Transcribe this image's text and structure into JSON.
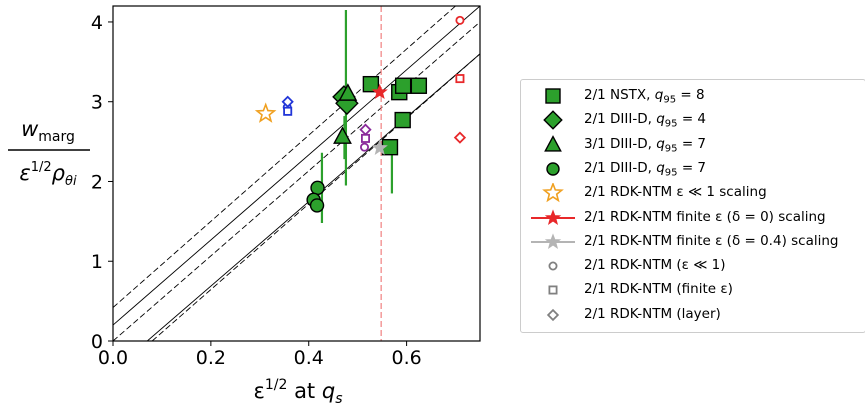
{
  "chart_data": {
    "type": "scatter",
    "title": "",
    "xlabel": "ε^{1/2} at q_s",
    "xlabel_parts": {
      "sym": "ε",
      "sup": "1/2",
      "mid": " at ",
      "q": "q",
      "sub": "s"
    },
    "ylabel_parts": {
      "num": "w",
      "num_sub": "marg",
      "den_eps": "ε",
      "den_sup": "1/2",
      "den_rho": "ρ",
      "den_sub": "θi"
    },
    "xlim": [
      0.0,
      0.75
    ],
    "ylim": [
      0.0,
      4.2
    ],
    "xticks": [
      "0.0",
      "0.2",
      "0.4",
      "0.6"
    ],
    "xtick_values": [
      0.0,
      0.2,
      0.4,
      0.6
    ],
    "yticks": [
      "0",
      "1",
      "2",
      "3",
      "4"
    ],
    "ytick_values": [
      0,
      1,
      2,
      3,
      4
    ],
    "grid": false,
    "legend_placement": "outside right",
    "colors": {
      "green": "#2ca02c",
      "red": "#e8282a",
      "blue": "#2236d8",
      "purple": "#8a2a9a",
      "orange": "#f0a020",
      "grey": "#b4b4b4",
      "dark_grey": "#808080"
    },
    "reference_lines": [
      {
        "style": "solid",
        "points": [
          [
            0.07,
            0.0
          ],
          [
            0.75,
            3.6
          ]
        ]
      },
      {
        "style": "solid",
        "points": [
          [
            0.0,
            0.2
          ],
          [
            0.75,
            4.2
          ]
        ]
      },
      {
        "style": "dashed",
        "points": [
          [
            0.0,
            0.42
          ],
          [
            0.7,
            4.2
          ]
        ]
      },
      {
        "style": "dashed",
        "points": [
          [
            0.0,
            0.0
          ],
          [
            0.75,
            4.0
          ]
        ]
      },
      {
        "style": "dashed",
        "points": [
          [
            0.08,
            0.0
          ],
          [
            0.75,
            3.6
          ]
        ]
      },
      {
        "style": "dashed-vertical-red",
        "x": 0.548
      }
    ],
    "error_bars": [
      {
        "x": 0.427,
        "y_low": 1.48,
        "y_high": 2.36
      },
      {
        "x": 0.473,
        "y_low": 2.28,
        "y_high": 2.82
      },
      {
        "x": 0.476,
        "y_low": 1.95,
        "y_high": 4.15
      },
      {
        "x": 0.57,
        "y_low": 1.85,
        "y_high": 2.48
      }
    ],
    "series": [
      {
        "name": "2/1 NSTX, q_{95} = 8",
        "marker": "square",
        "color": "green",
        "points": [
          [
            0.527,
            3.22
          ],
          [
            0.585,
            3.12
          ],
          [
            0.593,
            3.2
          ],
          [
            0.625,
            3.2
          ],
          [
            0.592,
            2.77
          ],
          [
            0.566,
            2.43
          ]
        ]
      },
      {
        "name": "2/1 DIII-D, q_{95} = 4",
        "marker": "diamond",
        "color": "green",
        "points": [
          [
            0.472,
            3.06
          ],
          [
            0.478,
            2.98
          ]
        ]
      },
      {
        "name": "3/1 DIII-D, q_{95} = 7",
        "marker": "triangle",
        "color": "green",
        "points": [
          [
            0.469,
            2.56
          ],
          [
            0.48,
            3.1
          ]
        ]
      },
      {
        "name": "2/1 DIII-D, q_{95} = 7",
        "marker": "circle",
        "color": "green",
        "points": [
          [
            0.418,
            1.92
          ],
          [
            0.41,
            1.77
          ],
          [
            0.417,
            1.7
          ]
        ]
      },
      {
        "name": "2/1 RDK-NTM ε ≪ 1 scaling",
        "marker": "star-open",
        "color": "orange",
        "points": [
          [
            0.312,
            2.85
          ]
        ]
      },
      {
        "name": "2/1 RDK-NTM finite ε (δ = 0) scaling",
        "marker": "star",
        "color": "red",
        "points": [
          [
            0.545,
            3.12
          ]
        ]
      },
      {
        "name": "2/1 RDK-NTM finite ε (δ = 0.4) scaling",
        "marker": "star",
        "color": "grey",
        "points": [
          [
            0.545,
            2.42
          ]
        ]
      },
      {
        "name": "2/1 RDK-NTM (ε ≪ 1)",
        "marker": "circle-open",
        "color": "multi",
        "points": [
          [
            0.356,
            2.93,
            "blue"
          ],
          [
            0.514,
            2.43,
            "purple"
          ],
          [
            0.709,
            4.02,
            "red"
          ]
        ]
      },
      {
        "name": "2/1 RDK-NTM (finite ε)",
        "marker": "square-open",
        "color": "multi",
        "points": [
          [
            0.357,
            2.88,
            "blue"
          ],
          [
            0.516,
            2.54,
            "purple"
          ],
          [
            0.709,
            3.29,
            "red"
          ]
        ]
      },
      {
        "name": "2/1 RDK-NTM (layer)",
        "marker": "diamond-open",
        "color": "multi",
        "points": [
          [
            0.357,
            3.0,
            "blue"
          ],
          [
            0.516,
            2.65,
            "purple"
          ],
          [
            0.709,
            2.55,
            "red"
          ]
        ]
      }
    ]
  },
  "legend": [
    {
      "marker": "square",
      "color": "#2ca02c",
      "text": "2/1 NSTX, ",
      "q": "q",
      "sub": "95",
      "tail": " = 8"
    },
    {
      "marker": "diamond",
      "color": "#2ca02c",
      "text": "2/1 DIII-D, ",
      "q": "q",
      "sub": "95",
      "tail": " = 4"
    },
    {
      "marker": "triangle",
      "color": "#2ca02c",
      "text": "3/1 DIII-D, ",
      "q": "q",
      "sub": "95",
      "tail": " = 7"
    },
    {
      "marker": "circle",
      "color": "#2ca02c",
      "text": "2/1 DIII-D, ",
      "q": "q",
      "sub": "95",
      "tail": " = 7"
    },
    {
      "marker": "star-open",
      "color": "#f0a020",
      "text": "2/1 RDK-NTM ε ≪ 1 scaling"
    },
    {
      "marker": "star-line",
      "color": "#e8282a",
      "text": "2/1 RDK-NTM finite ε (δ = 0) scaling"
    },
    {
      "marker": "star-line",
      "color": "#b4b4b4",
      "text": "2/1 RDK-NTM finite ε (δ = 0.4) scaling"
    },
    {
      "marker": "circle-open",
      "color": "#808080",
      "text": "2/1 RDK-NTM (ε ≪ 1)"
    },
    {
      "marker": "square-open",
      "color": "#808080",
      "text": "2/1 RDK-NTM (finite ε)"
    },
    {
      "marker": "diamond-open",
      "color": "#808080",
      "text": "2/1 RDK-NTM (layer)"
    }
  ]
}
